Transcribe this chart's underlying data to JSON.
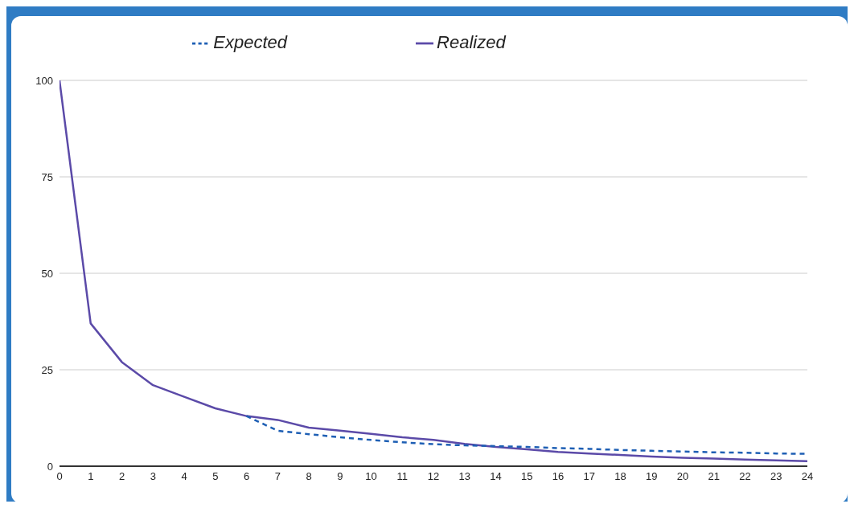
{
  "chart_data": {
    "type": "line",
    "x": [
      0,
      1,
      2,
      3,
      4,
      5,
      6,
      7,
      8,
      9,
      10,
      11,
      12,
      13,
      14,
      15,
      16,
      17,
      18,
      19,
      20,
      21,
      22,
      23,
      24
    ],
    "series": [
      {
        "name": "Realized",
        "color": "#5b4aa8",
        "line_style": "solid",
        "values": [
          100,
          37,
          27,
          21,
          18,
          15,
          13,
          12,
          10,
          9.2,
          8.4,
          7.5,
          6.8,
          5.8,
          5.0,
          4.4,
          3.7,
          3.3,
          2.9,
          2.5,
          2.2,
          2.0,
          1.7,
          1.5,
          1.3
        ]
      },
      {
        "name": "Expected",
        "color": "#1e5fb4",
        "line_style": "dashed",
        "values": [
          null,
          null,
          null,
          null,
          null,
          null,
          13,
          9.2,
          8.3,
          7.5,
          6.8,
          6.2,
          5.7,
          5.4,
          5.2,
          5.0,
          4.7,
          4.5,
          4.2,
          4.0,
          3.8,
          3.6,
          3.5,
          3.3,
          3.2
        ]
      }
    ],
    "xlim": [
      0,
      24
    ],
    "xticks": [
      0,
      1,
      2,
      3,
      4,
      5,
      6,
      7,
      8,
      9,
      10,
      11,
      12,
      13,
      14,
      15,
      16,
      17,
      18,
      19,
      20,
      21,
      22,
      23,
      24
    ],
    "ylim": [
      0,
      100
    ],
    "yticks": [
      0,
      25,
      50,
      75,
      100
    ],
    "grid": "y",
    "legend": "top",
    "marker": "none"
  }
}
